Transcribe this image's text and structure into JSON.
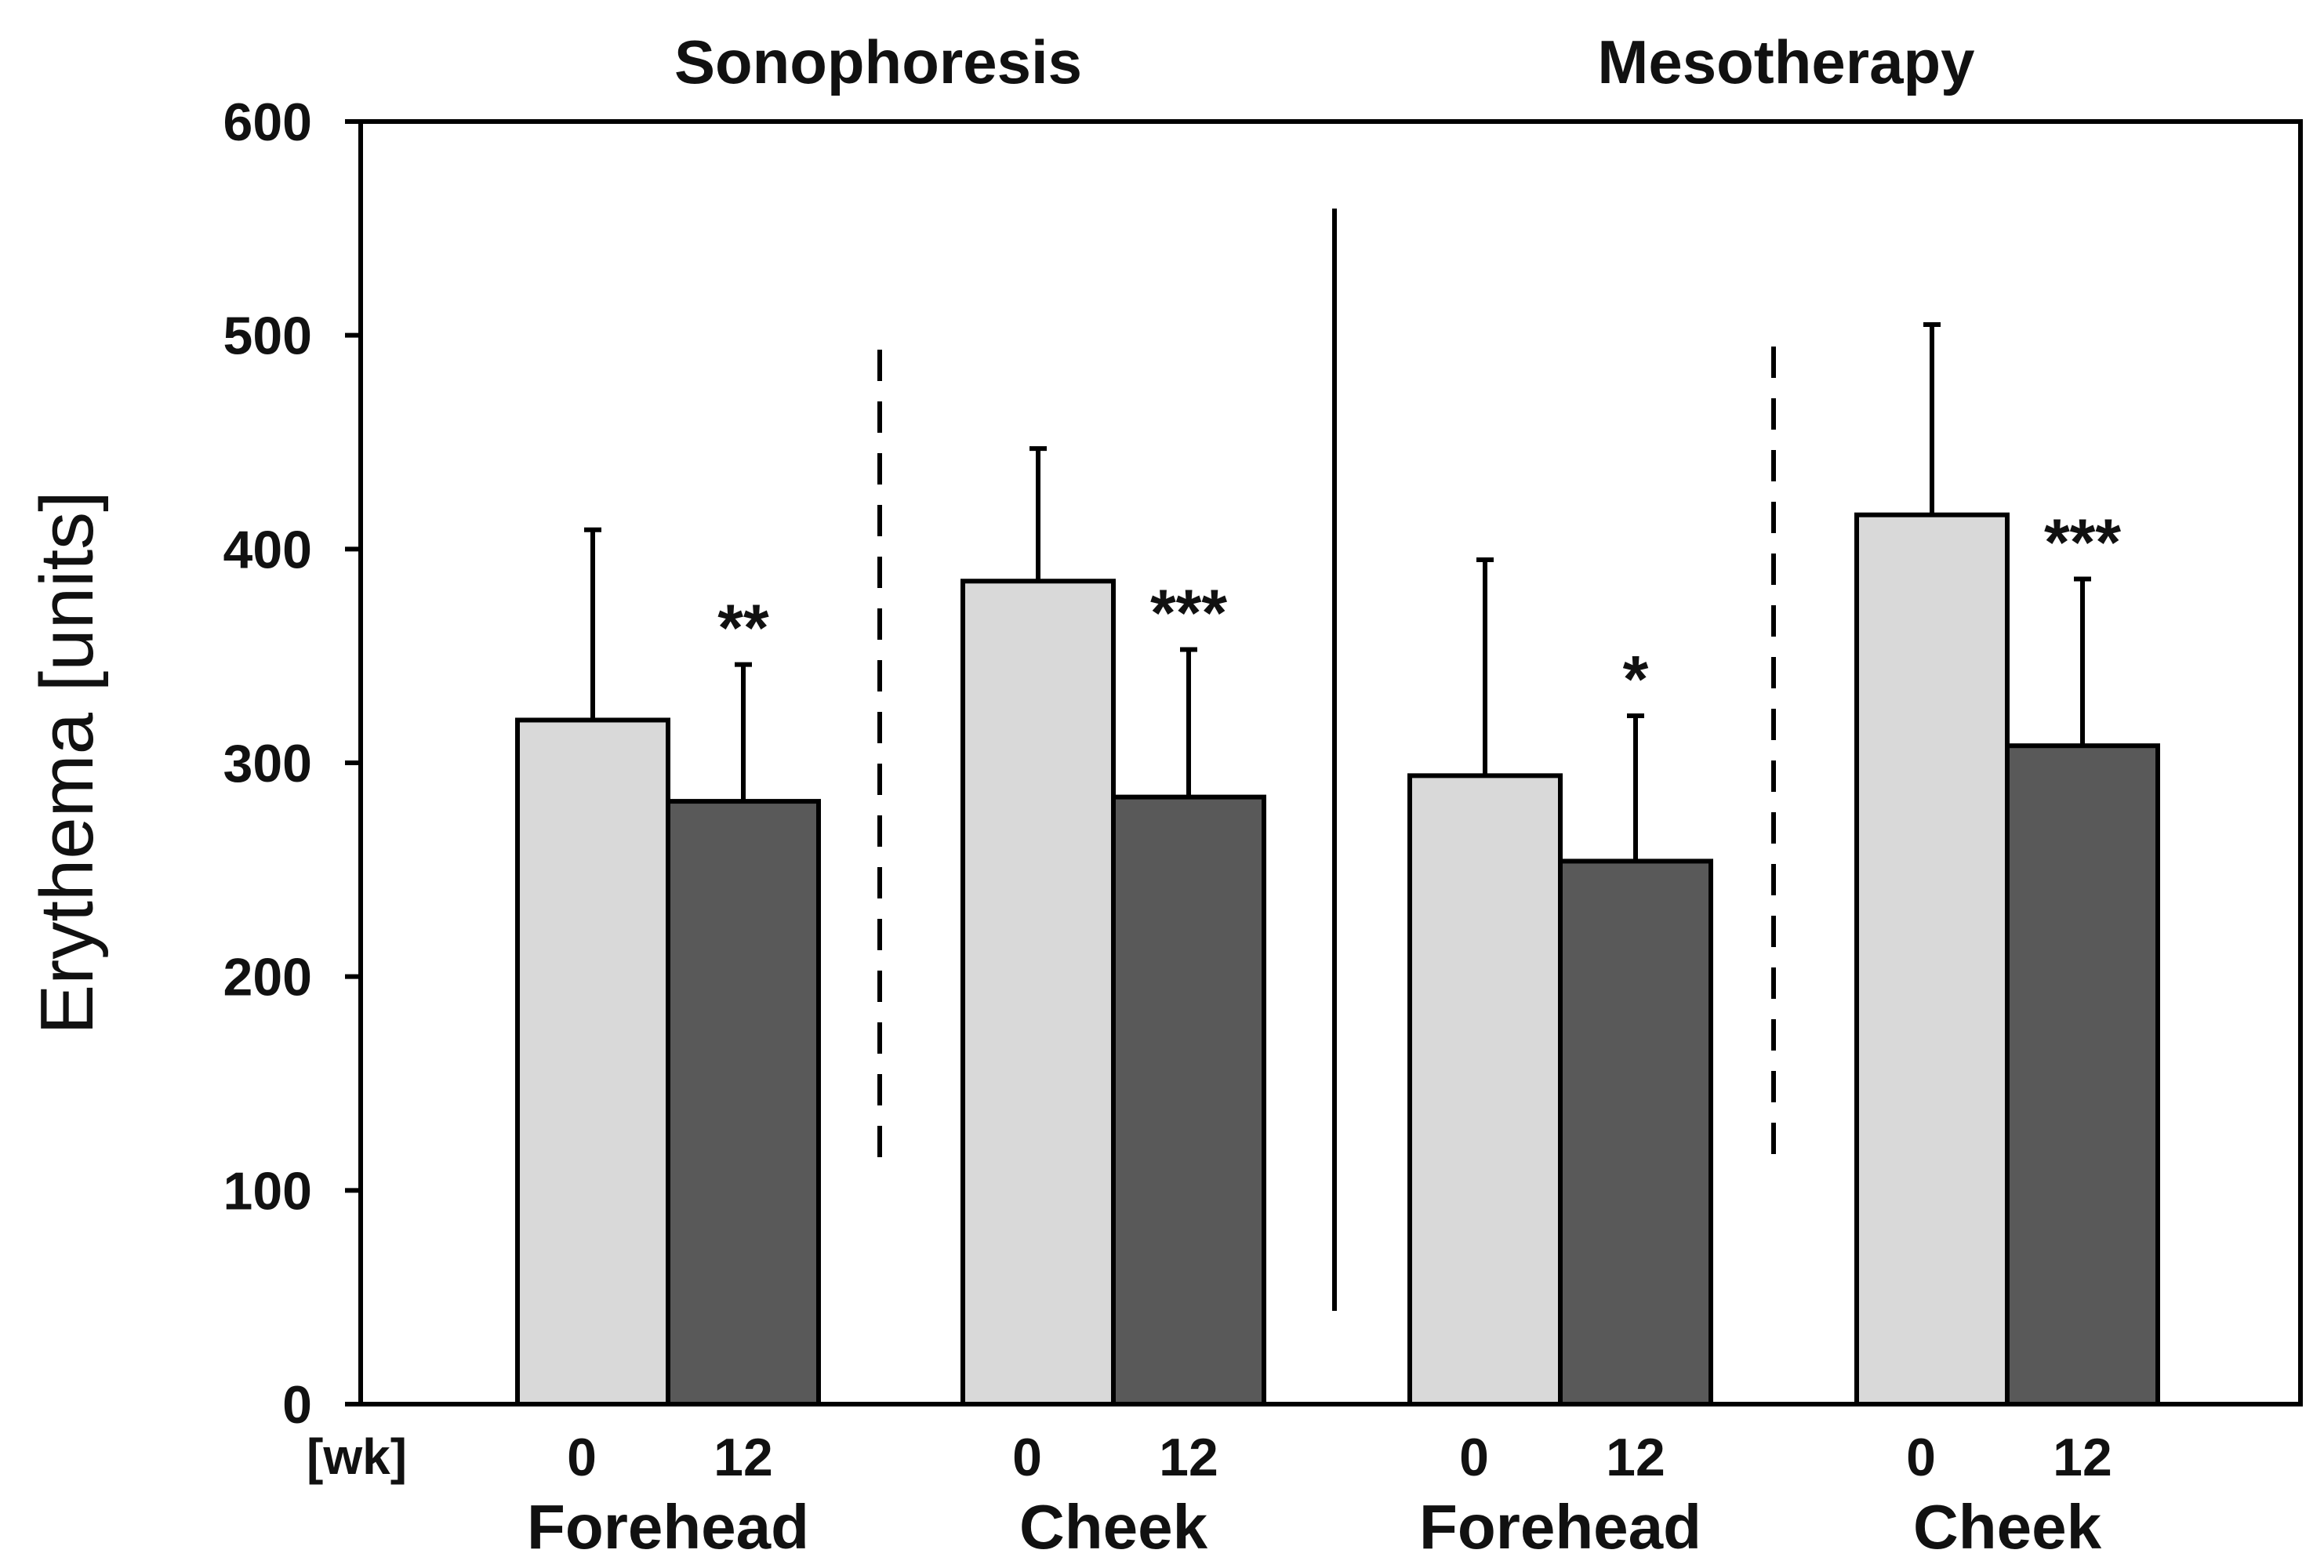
{
  "chart_data": {
    "type": "bar",
    "title": "",
    "ylabel": "Erythema [units]",
    "xlabel": "",
    "x_unit_label": "[wk]",
    "ylim": [
      0,
      600
    ],
    "yticks": [
      0,
      100,
      200,
      300,
      400,
      500,
      600
    ],
    "groups": [
      {
        "section": "Sonophoresis",
        "site": "Forehead",
        "bars": [
          {
            "week": "0",
            "value": 320,
            "error": 89
          },
          {
            "week": "12",
            "value": 282,
            "error": 64
          }
        ],
        "significance": "**"
      },
      {
        "section": "Sonophoresis",
        "site": "Cheek",
        "bars": [
          {
            "week": "0",
            "value": 385,
            "error": 62
          },
          {
            "week": "12",
            "value": 284,
            "error": 69
          }
        ],
        "significance": "***"
      },
      {
        "section": "Mesotherapy",
        "site": "Forehead",
        "bars": [
          {
            "week": "0",
            "value": 294,
            "error": 101
          },
          {
            "week": "12",
            "value": 254,
            "error": 68
          }
        ],
        "significance": "*"
      },
      {
        "section": "Mesotherapy",
        "site": "Cheek",
        "bars": [
          {
            "week": "0",
            "value": 416,
            "error": 89
          },
          {
            "week": "12",
            "value": 308,
            "error": 78
          }
        ],
        "significance": "***"
      }
    ],
    "sections": [
      "Sonophoresis",
      "Mesotherapy"
    ],
    "colors": {
      "week0": "#d9d9d9",
      "week12": "#595959",
      "stroke": "#000000"
    }
  }
}
